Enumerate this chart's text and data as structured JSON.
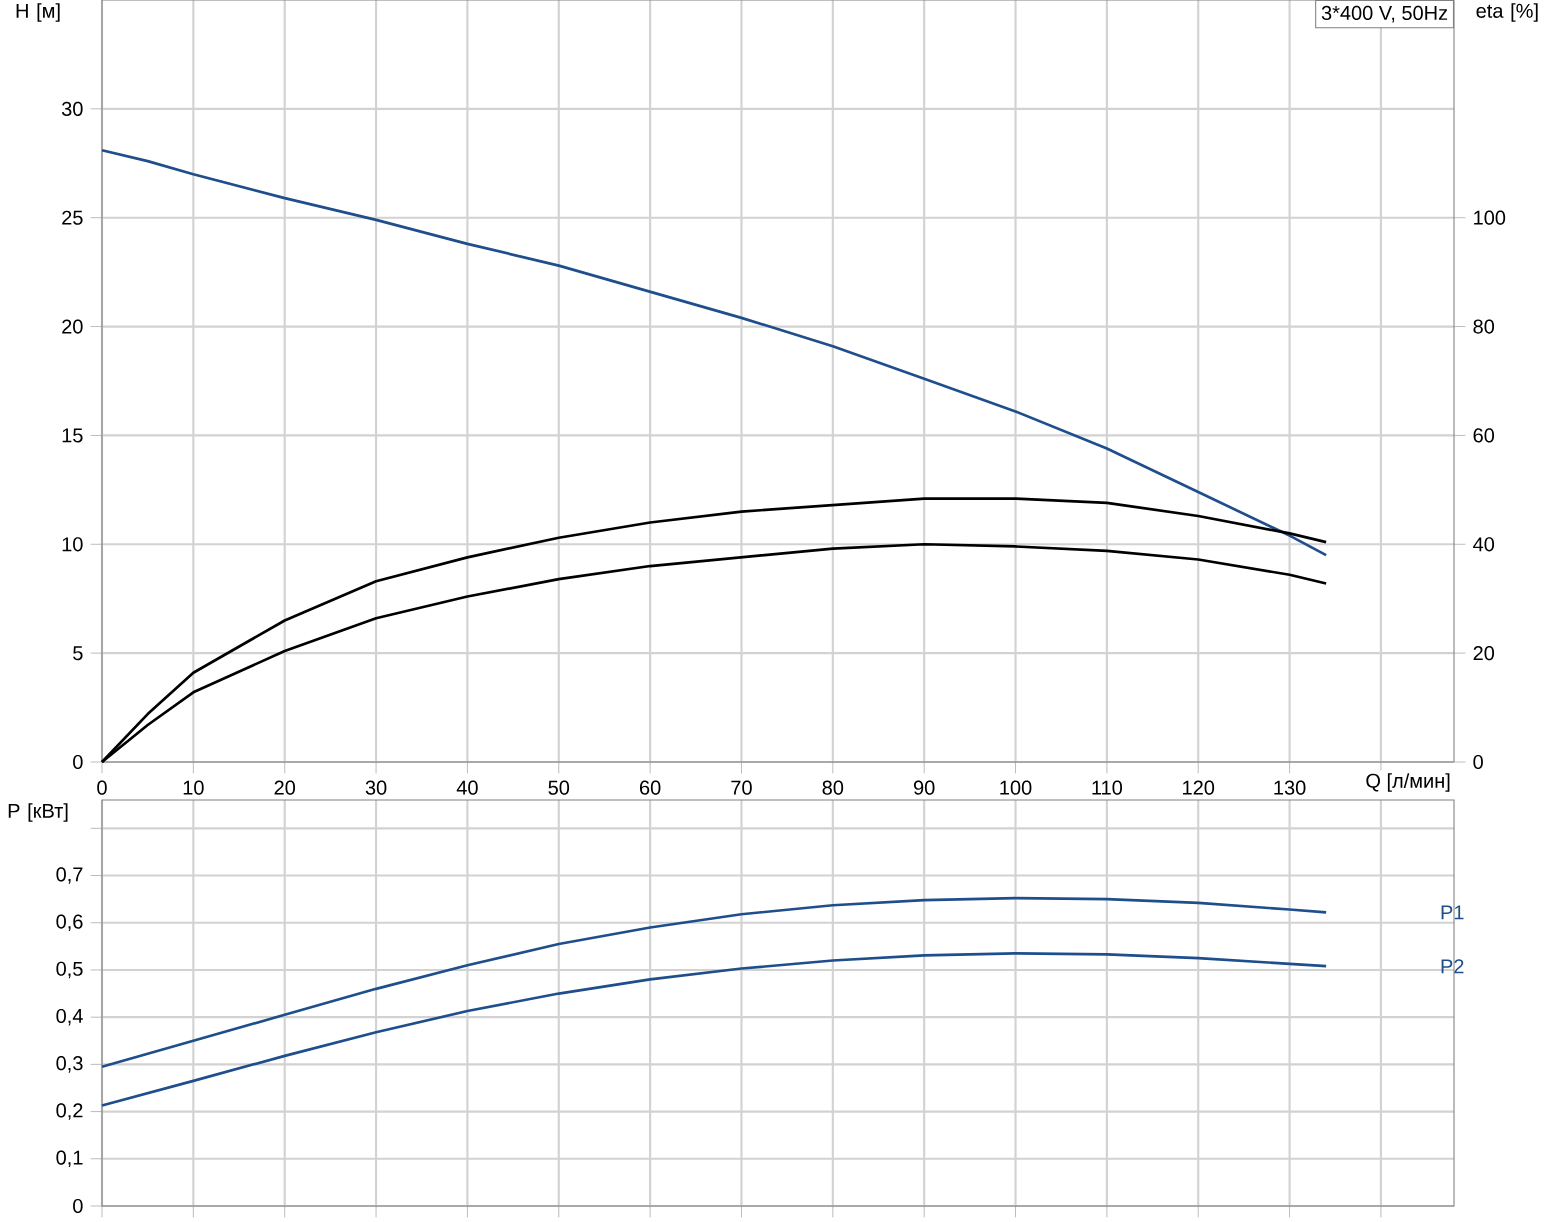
{
  "chart_data": [
    {
      "type": "line",
      "x": [
        0,
        5,
        10,
        20,
        30,
        40,
        50,
        60,
        70,
        80,
        90,
        100,
        110,
        120,
        130,
        134
      ],
      "xlabel": "Q [л/мин]",
      "ylabel": "H [м]",
      "y2label": "eta [%]",
      "xlim": [
        0,
        148
      ],
      "ylim": [
        0,
        35
      ],
      "y2lim": [
        0,
        140
      ],
      "xticks": [
        0,
        10,
        20,
        30,
        40,
        50,
        60,
        70,
        80,
        90,
        100,
        110,
        120,
        130,
        {
          "value": 140,
          "label": null
        }
      ],
      "yticks": [
        0,
        5,
        10,
        15,
        20,
        25,
        30
      ],
      "y2ticks": [
        0,
        20,
        40,
        60,
        80,
        100
      ],
      "grid": true,
      "marker": "none",
      "annotations": [
        "3*400 V, 50Hz"
      ],
      "series": [
        {
          "color": "#1f4e8c",
          "values": [
            28.1,
            27.6,
            27.0,
            25.9,
            24.9,
            23.8,
            22.8,
            21.6,
            20.4,
            19.1,
            17.6,
            16.1,
            14.4,
            12.4,
            10.4,
            9.5
          ]
        },
        {
          "color": "#000000",
          "axis": "y2",
          "values": [
            0,
            8.8,
            16.4,
            26,
            33.2,
            37.6,
            41.2,
            44,
            46,
            47.2,
            48.4,
            48.4,
            47.6,
            45.2,
            42,
            40.4
          ]
        },
        {
          "color": "#000000",
          "axis": "y2",
          "values": [
            0,
            6.8,
            12.8,
            20.4,
            26.4,
            30.4,
            33.6,
            36,
            37.6,
            39.2,
            40,
            39.6,
            38.8,
            37.2,
            34.4,
            32.8
          ]
        }
      ]
    },
    {
      "type": "line",
      "x": [
        0,
        10,
        20,
        30,
        40,
        50,
        60,
        70,
        80,
        90,
        100,
        110,
        120,
        130,
        134
      ],
      "ylabel": "P [кВт]",
      "xlim": [
        0,
        148
      ],
      "ylim": [
        0,
        0.86
      ],
      "xticks": [
        0,
        10,
        20,
        30,
        40,
        50,
        60,
        70,
        80,
        90,
        100,
        110,
        120,
        130,
        140
      ],
      "yticks": [
        0,
        {
          "value": 0.1,
          "label": "0,1"
        },
        {
          "value": 0.2,
          "label": "0,2"
        },
        {
          "value": 0.3,
          "label": "0,3"
        },
        {
          "value": 0.4,
          "label": "0,4"
        },
        {
          "value": 0.5,
          "label": "0,5"
        },
        {
          "value": 0.6,
          "label": "0,6"
        },
        {
          "value": 0.7,
          "label": "0,7"
        },
        {
          "value": 0.8,
          "label": null
        }
      ],
      "tick_labels": "y",
      "grid": true,
      "marker": "none",
      "series": [
        {
          "name": "P1",
          "color": "#1f4e8c",
          "values": [
            0.295,
            0.35,
            0.405,
            0.46,
            0.51,
            0.555,
            0.59,
            0.618,
            0.637,
            0.648,
            0.652,
            0.65,
            0.642,
            0.628,
            0.622
          ]
        },
        {
          "name": "P2",
          "color": "#1f4e8c",
          "values": [
            0.213,
            0.265,
            0.318,
            0.368,
            0.413,
            0.45,
            0.48,
            0.503,
            0.52,
            0.531,
            0.535,
            0.533,
            0.525,
            0.513,
            0.508
          ]
        }
      ]
    }
  ]
}
